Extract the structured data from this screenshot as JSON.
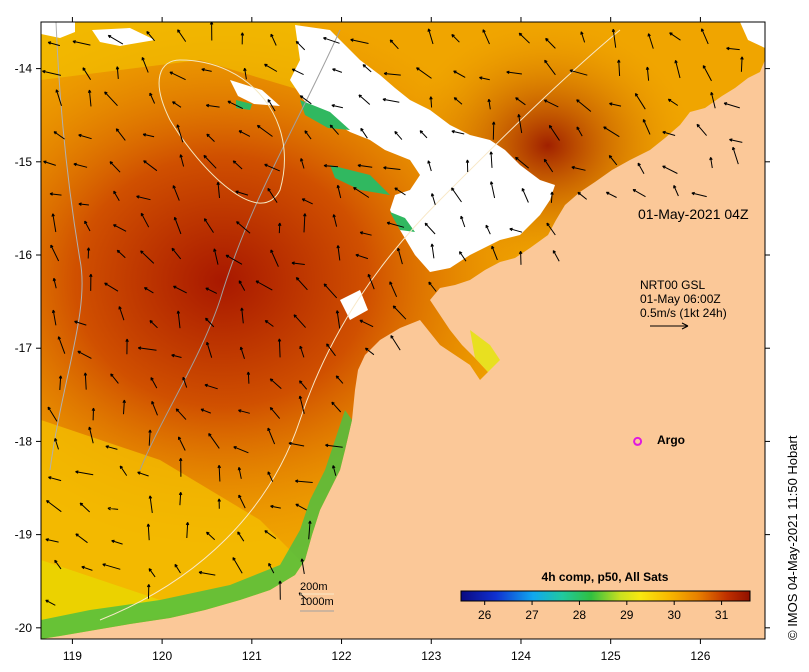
{
  "map": {
    "timestamp": "01-May-2021 04Z",
    "current_legend": {
      "line1": "NRT00 GSL",
      "line2": "01-May 06:00Z",
      "line3": "0.5m/s (1kt 24h)"
    },
    "argo_label": "Argo",
    "depth_contours": {
      "label_200": "200m",
      "label_1000": "1000m"
    },
    "colorbar": {
      "title": "4h comp, p50, All Sats",
      "ticks": [
        "26",
        "27",
        "28",
        "29",
        "30",
        "31"
      ],
      "min": 25.5,
      "max": 31.6
    },
    "credit": "© IMOS 04-May-2021 11:50 Hobart",
    "lon_ticks": [
      "119",
      "120",
      "121",
      "122",
      "123",
      "124",
      "125",
      "126"
    ],
    "lat_ticks": [
      "-14",
      "-15",
      "-16",
      "-17",
      "-18",
      "-19",
      "-20"
    ],
    "lon_range": [
      118.65,
      126.72
    ],
    "lat_range": [
      -20.12,
      -13.5
    ],
    "argo_position": {
      "lon": 125.3,
      "lat": -18.0
    },
    "colors": {
      "land": "#fbc898",
      "cloud": "#ffffff",
      "arrow": "#000000",
      "argo": "#e018e0"
    }
  }
}
